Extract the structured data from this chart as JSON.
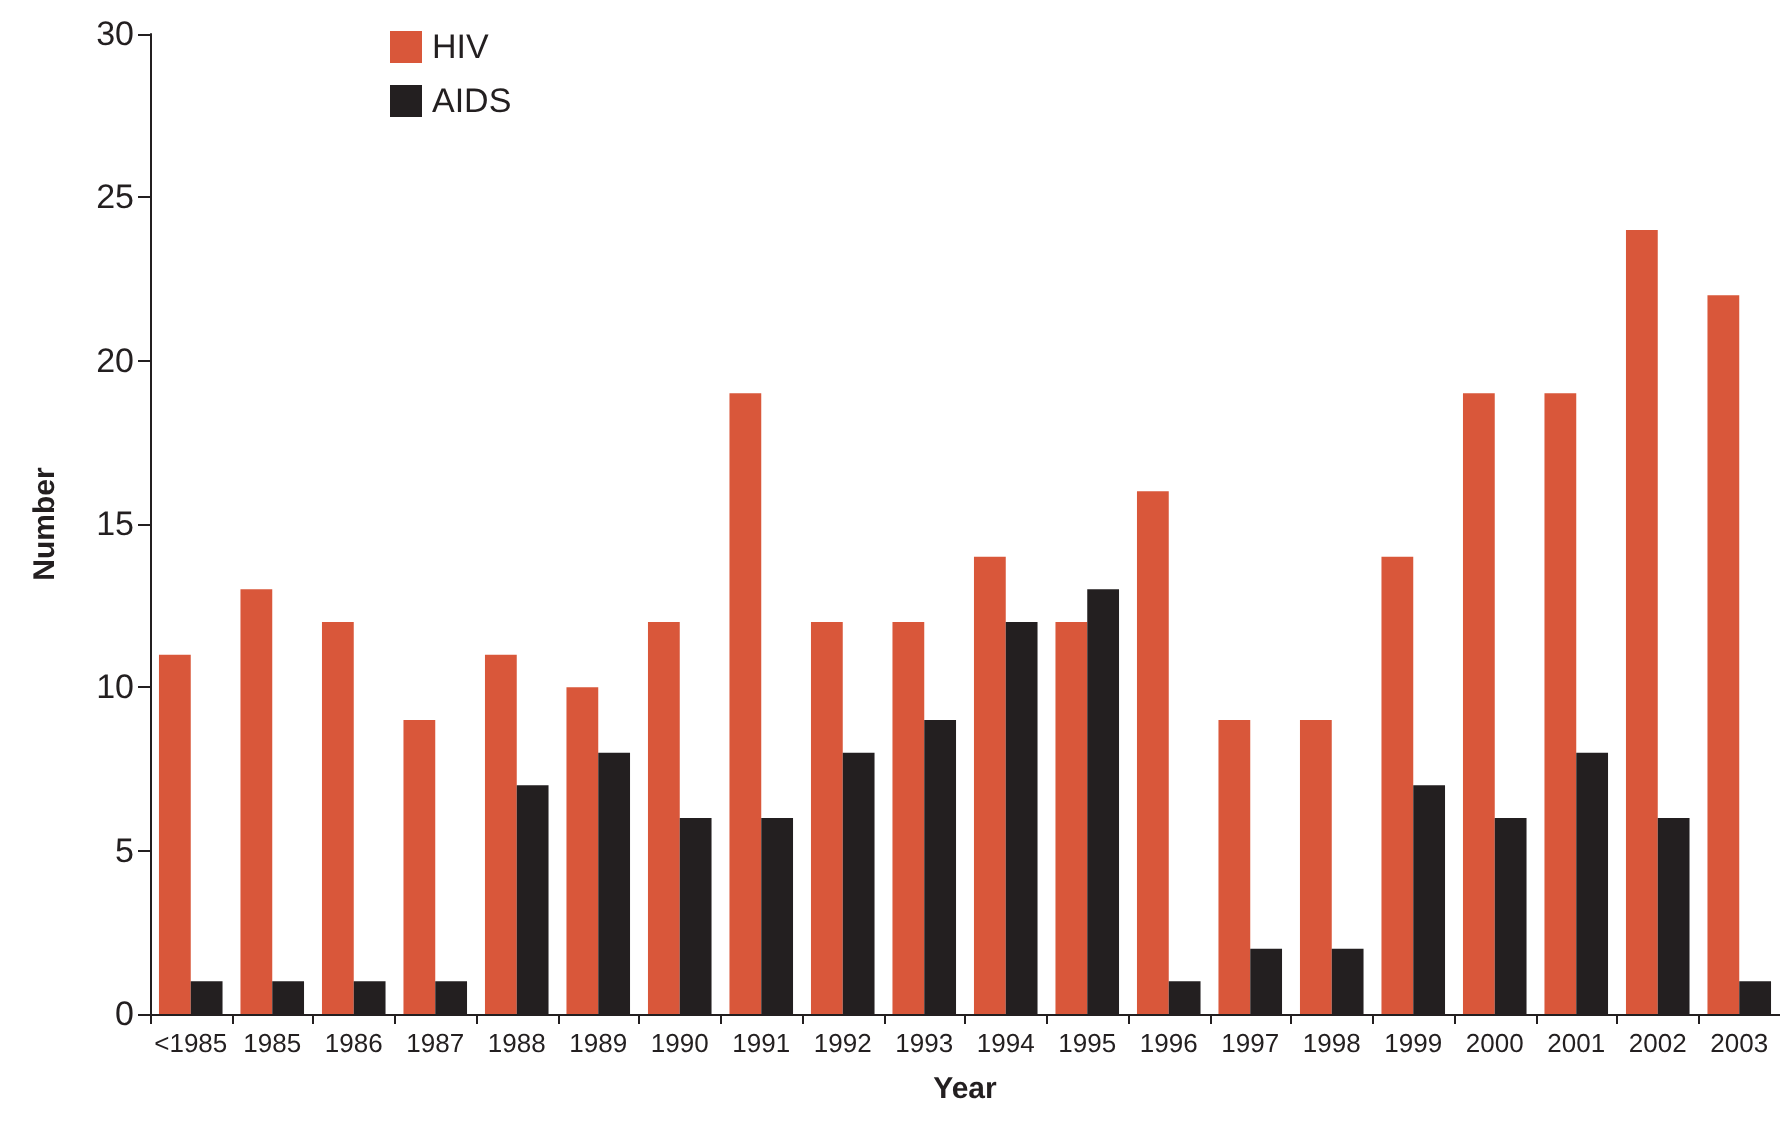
{
  "chart_data": {
    "type": "bar",
    "xlabel": "Year",
    "ylabel": "Number",
    "categories": [
      "<1985",
      "1985",
      "1986",
      "1987",
      "1988",
      "1989",
      "1990",
      "1991",
      "1992",
      "1993",
      "1994",
      "1995",
      "1996",
      "1997",
      "1998",
      "1999",
      "2000",
      "2001",
      "2002",
      "2003"
    ],
    "series": [
      {
        "name": "HIV",
        "color": "#d9573a",
        "values": [
          11,
          13,
          12,
          9,
          11,
          10,
          12,
          19,
          12,
          12,
          14,
          12,
          16,
          9,
          9,
          14,
          19,
          19,
          24,
          22
        ]
      },
      {
        "name": "AIDS",
        "color": "#231f20",
        "values": [
          1,
          1,
          1,
          1,
          7,
          8,
          6,
          6,
          8,
          9,
          12,
          13,
          1,
          2,
          2,
          7,
          6,
          8,
          6,
          1
        ]
      }
    ],
    "ylim": [
      0,
      30
    ],
    "yticks": [
      0,
      5,
      10,
      15,
      20,
      25,
      30
    ],
    "grid": false,
    "legend": "top left"
  }
}
